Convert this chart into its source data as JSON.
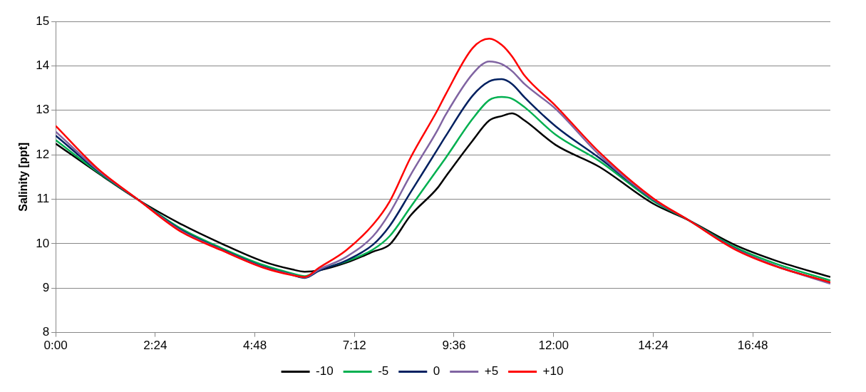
{
  "chart_data": {
    "type": "line",
    "ylabel": "Salinity [ppt]",
    "x": [
      0,
      1,
      2,
      3,
      4,
      5,
      5.7,
      6,
      6.35,
      7,
      7.65,
      8.05,
      8.55,
      9.2,
      9.4,
      10.05,
      10.45,
      10.75,
      11,
      11.3,
      12.05,
      13.1,
      14.4,
      15.25,
      16.35,
      17.35,
      18.67
    ],
    "series": [
      {
        "name": "-10",
        "color": "#000000",
        "values": [
          12.25,
          11.6,
          10.98,
          10.45,
          10.0,
          9.6,
          9.42,
          9.37,
          9.4,
          9.57,
          9.82,
          9.98,
          10.63,
          11.25,
          11.51,
          12.32,
          12.77,
          12.87,
          12.93,
          12.77,
          12.22,
          11.73,
          10.9,
          10.53,
          9.98,
          9.62,
          9.25
        ]
      },
      {
        "name": "-5",
        "color": "#00b050",
        "values": [
          12.33,
          11.62,
          10.98,
          10.35,
          9.9,
          9.52,
          9.33,
          9.27,
          9.41,
          9.6,
          9.87,
          10.17,
          10.82,
          11.67,
          11.93,
          12.81,
          13.23,
          13.3,
          13.26,
          13.07,
          12.45,
          11.86,
          10.96,
          10.53,
          9.93,
          9.55,
          9.17
        ]
      },
      {
        "name": "0",
        "color": "#002060",
        "values": [
          12.43,
          11.65,
          10.98,
          10.32,
          9.87,
          9.48,
          9.3,
          9.23,
          9.39,
          9.62,
          9.98,
          10.4,
          11.15,
          12.12,
          12.42,
          13.33,
          13.65,
          13.7,
          13.59,
          13.29,
          12.64,
          11.93,
          10.99,
          10.53,
          9.9,
          9.5,
          9.12
        ]
      },
      {
        "name": "+5",
        "color": "#8064a2",
        "values": [
          12.52,
          11.67,
          10.98,
          10.3,
          9.86,
          9.47,
          9.3,
          9.24,
          9.42,
          9.7,
          10.17,
          10.69,
          11.54,
          12.55,
          12.9,
          13.82,
          14.1,
          14.04,
          13.88,
          13.59,
          13.03,
          12.0,
          11.0,
          10.53,
          9.89,
          9.5,
          9.1
        ]
      },
      {
        "name": "+10",
        "color": "#ff0000",
        "values": [
          12.65,
          11.7,
          10.98,
          10.28,
          9.85,
          9.46,
          9.29,
          9.25,
          9.46,
          9.85,
          10.43,
          10.95,
          11.93,
          13.0,
          13.36,
          14.4,
          14.61,
          14.47,
          14.21,
          13.78,
          13.1,
          12.06,
          11.02,
          10.53,
          9.88,
          9.49,
          9.13
        ]
      }
    ],
    "xlim": [
      0,
      18.67
    ],
    "xticks": [
      {
        "value": 0,
        "label": "0:00"
      },
      {
        "value": 2.4,
        "label": "2:24"
      },
      {
        "value": 4.8,
        "label": "4:48"
      },
      {
        "value": 7.2,
        "label": "7:12"
      },
      {
        "value": 9.6,
        "label": "9:36"
      },
      {
        "value": 12,
        "label": "12:00"
      },
      {
        "value": 14.4,
        "label": "14:24"
      },
      {
        "value": 16.8,
        "label": "16:48"
      }
    ],
    "ylim": [
      8,
      15
    ],
    "yticks": [
      8,
      9,
      10,
      11,
      12,
      13,
      14,
      15
    ],
    "grid": "y",
    "legend": "bottom",
    "marker": "none",
    "line_style": "solid"
  }
}
